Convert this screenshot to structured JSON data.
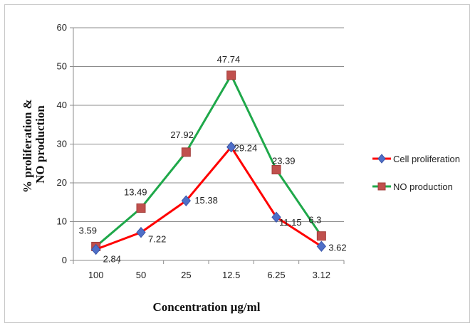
{
  "chart_data": {
    "type": "line",
    "categories": [
      "100",
      "50",
      "25",
      "12.5",
      "6.25",
      "3.12"
    ],
    "series": [
      {
        "name": "Cell proliferation",
        "values": [
          2.84,
          7.22,
          15.38,
          29.24,
          11.15,
          3.62
        ],
        "labels": [
          "2.84",
          "7.22",
          "15.38",
          "29.24",
          "11.15",
          "3.62"
        ],
        "color": "#ff0000",
        "marker": "diamond",
        "marker_color": "#4f6fc8"
      },
      {
        "name": "NO production",
        "values": [
          3.59,
          13.49,
          27.92,
          47.74,
          23.39,
          6.3
        ],
        "labels": [
          "3.59",
          "13.49",
          "27.92",
          "47.74",
          "23.39",
          "6.3"
        ],
        "color": "#1fa84a",
        "marker": "square",
        "marker_color": "#c0504d"
      }
    ],
    "xlabel": "Concentration µg/ml",
    "ylabel_lines": [
      "% proliferation &",
      "NO production"
    ],
    "ylim": [
      0,
      60
    ],
    "yticks": [
      "0",
      "10",
      "20",
      "30",
      "40",
      "50",
      "60"
    ],
    "grid": true,
    "legend_position": "right"
  }
}
